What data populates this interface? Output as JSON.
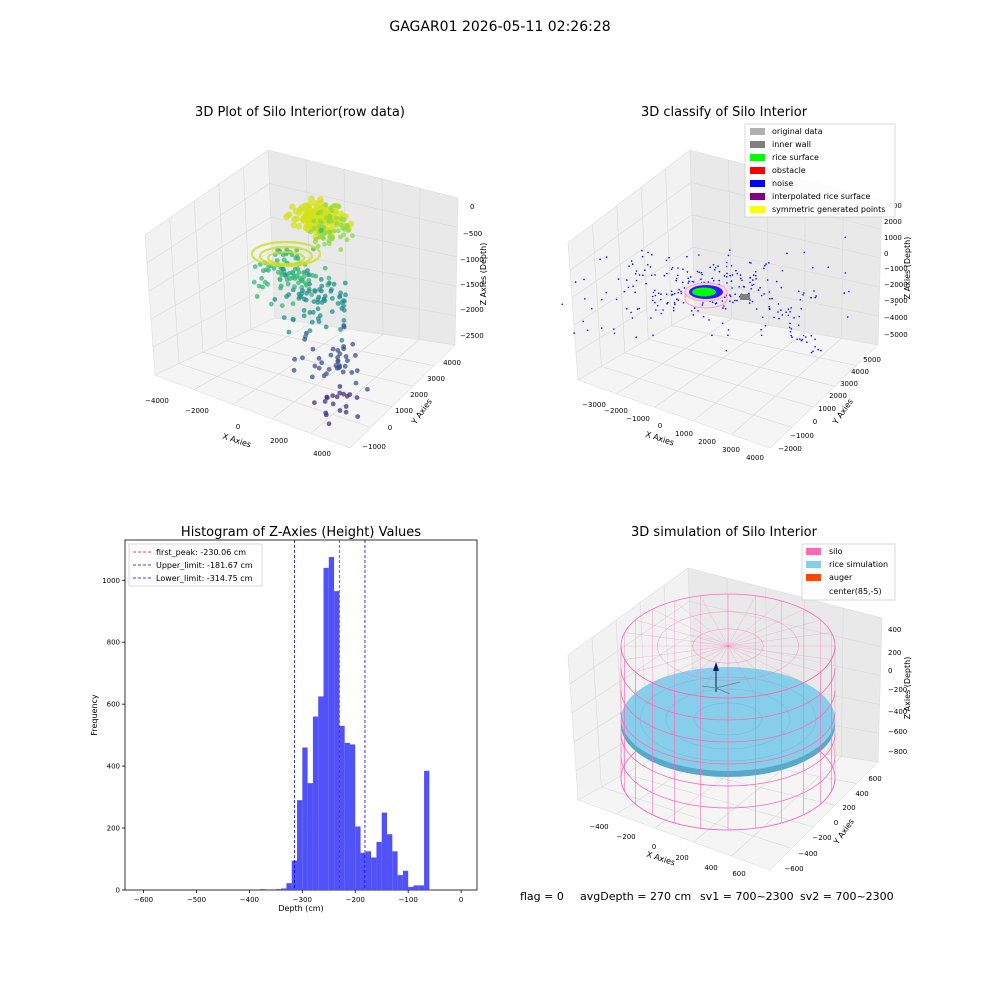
{
  "figure": {
    "suptitle": "GAGAR01 2026-05-11 02:26:28",
    "footer": {
      "flag": "flag = 0",
      "avg_depth": "avgDepth = 270 cm",
      "sv1": "sv1 = 700~2300",
      "sv2": "sv2 = 700~2300"
    }
  },
  "chart_data": [
    {
      "type": "scatter",
      "projection": "3d",
      "title": "3D Plot of Silo Interior(row data)",
      "xlabel": "X Axies",
      "ylabel": "Y Axies",
      "zlabel": "Z Axies (Depth)",
      "xticks": [
        "−4000",
        "−2000",
        "0",
        "2000",
        "4000"
      ],
      "yticks": [
        "−1000",
        "0",
        "1000",
        "2000",
        "3000",
        "4000"
      ],
      "zticks": [
        "0",
        "−500",
        "−1000",
        "−1500",
        "−2000",
        "−2500"
      ],
      "xlim": [
        -4500,
        4500
      ],
      "ylim": [
        -1200,
        4400
      ],
      "zlim": [
        -2700,
        0
      ],
      "colormap": "viridis",
      "clusters": [
        {
          "x": -300,
          "y": 2600,
          "z": -700,
          "spread": [
            900,
            500,
            150
          ],
          "count": 160,
          "color": "#d4e21a"
        },
        {
          "x": 200,
          "y": 2800,
          "z": -850,
          "spread": [
            800,
            500,
            200
          ],
          "count": 60,
          "color": "#8fd744"
        },
        {
          "x": -800,
          "y": 1800,
          "z": -1300,
          "spread": [
            1400,
            900,
            250
          ],
          "count": 90,
          "color": "#35b779"
        },
        {
          "x": 500,
          "y": 1500,
          "z": -1500,
          "spread": [
            1700,
            1000,
            300
          ],
          "count": 70,
          "color": "#21918c"
        },
        {
          "x": 2000,
          "y": 800,
          "z": -2000,
          "spread": [
            1400,
            900,
            300
          ],
          "count": 40,
          "color": "#3b528b"
        },
        {
          "x": 2600,
          "y": 300,
          "z": -2400,
          "spread": [
            900,
            700,
            200
          ],
          "count": 20,
          "color": "#46327e"
        }
      ]
    },
    {
      "type": "scatter",
      "projection": "3d",
      "title": "3D classify of Silo Interior",
      "xlabel": "X Axies",
      "ylabel": "Y Axies",
      "zlabel": "Z Axies (Depth)",
      "xticks": [
        "−3000",
        "−2000",
        "−1000",
        "0",
        "1000",
        "2000",
        "3000",
        "4000"
      ],
      "yticks": [
        "−2000",
        "−1000",
        "0",
        "1000",
        "2000",
        "3000",
        "4000",
        "5000"
      ],
      "zticks": [
        "3000",
        "2000",
        "1000",
        "0",
        "−1000",
        "−2000",
        "−3000",
        "−4000",
        "−5000"
      ],
      "xlim": [
        -3500,
        4500
      ],
      "ylim": [
        -2300,
        5300
      ],
      "zlim": [
        -5300,
        3300
      ],
      "legend": {
        "placement": "upper-right",
        "entries": [
          {
            "label": "original data",
            "color": "#b0b0b0"
          },
          {
            "label": "inner wall",
            "color": "#808080"
          },
          {
            "label": "rice surface",
            "color": "#00ff00"
          },
          {
            "label": "obstacle",
            "color": "#ff0000"
          },
          {
            "label": "noise",
            "color": "#0000ff"
          },
          {
            "label": "interpolated rice surface",
            "color": "#800080"
          },
          {
            "label": "symmetric generated points",
            "color": "#ffff00"
          }
        ]
      }
    },
    {
      "type": "bar",
      "subtype": "histogram",
      "title": "Histogram of Z-Axies (Height) Values",
      "xlabel": "Depth (cm)",
      "ylabel": "Frequency",
      "xlim": [
        -635,
        30
      ],
      "ylim": [
        0,
        1130
      ],
      "xticks": [
        -600,
        -500,
        -400,
        -300,
        -200,
        -100,
        0
      ],
      "yticks": [
        0,
        200,
        400,
        600,
        800,
        1000
      ],
      "bar_color": "#4848f8",
      "bins": [
        {
          "x0": -380,
          "x1": -370,
          "count": 3
        },
        {
          "x0": -360,
          "x1": -350,
          "count": 2
        },
        {
          "x0": -350,
          "x1": -340,
          "count": 3
        },
        {
          "x0": -340,
          "x1": -330,
          "count": 5
        },
        {
          "x0": -330,
          "x1": -320,
          "count": 22
        },
        {
          "x0": -320,
          "x1": -310,
          "count": 95
        },
        {
          "x0": -310,
          "x1": -300,
          "count": 290
        },
        {
          "x0": -300,
          "x1": -290,
          "count": 460
        },
        {
          "x0": -290,
          "x1": -280,
          "count": 345
        },
        {
          "x0": -280,
          "x1": -270,
          "count": 560
        },
        {
          "x0": -270,
          "x1": -260,
          "count": 625
        },
        {
          "x0": -260,
          "x1": -250,
          "count": 1040
        },
        {
          "x0": -250,
          "x1": -240,
          "count": 1075
        },
        {
          "x0": -240,
          "x1": -230,
          "count": 965
        },
        {
          "x0": -230,
          "x1": -220,
          "count": 530
        },
        {
          "x0": -220,
          "x1": -210,
          "count": 475
        },
        {
          "x0": -210,
          "x1": -200,
          "count": 470
        },
        {
          "x0": -200,
          "x1": -190,
          "count": 205
        },
        {
          "x0": -190,
          "x1": -180,
          "count": 120
        },
        {
          "x0": -180,
          "x1": -170,
          "count": 125
        },
        {
          "x0": -170,
          "x1": -160,
          "count": 105
        },
        {
          "x0": -160,
          "x1": -150,
          "count": 155
        },
        {
          "x0": -150,
          "x1": -140,
          "count": 250
        },
        {
          "x0": -140,
          "x1": -130,
          "count": 180
        },
        {
          "x0": -130,
          "x1": -120,
          "count": 125
        },
        {
          "x0": -120,
          "x1": -110,
          "count": 48
        },
        {
          "x0": -110,
          "x1": -100,
          "count": 62
        },
        {
          "x0": -100,
          "x1": -90,
          "count": 10
        },
        {
          "x0": -90,
          "x1": -80,
          "count": 15
        },
        {
          "x0": -80,
          "x1": -70,
          "count": 15
        },
        {
          "x0": -70,
          "x1": -60,
          "count": 385
        }
      ],
      "vlines": [
        {
          "label": "first_peak: -230.06 cm",
          "x": -230.06,
          "color": "#ff0000"
        },
        {
          "label": "Upper_limit: -181.67 cm",
          "x": -181.67,
          "color": "#0000cc"
        },
        {
          "label": "Lower_limit: -314.75 cm",
          "x": -314.75,
          "color": "#0000cc"
        }
      ],
      "legend": {
        "placement": "upper-left"
      }
    },
    {
      "type": "surface",
      "projection": "3d",
      "title": "3D simulation of Silo Interior",
      "xlabel": "X Axies",
      "ylabel": "Y Axies",
      "zlabel": "Z Axies (Depth)",
      "xticks": [
        "−400",
        "−200",
        "0",
        "200",
        "400",
        "600"
      ],
      "yticks": [
        "−600",
        "−400",
        "−200",
        "0",
        "200",
        "400",
        "600"
      ],
      "zticks": [
        "400",
        "200",
        "0",
        "−200",
        "−400",
        "−600",
        "−800"
      ],
      "legend": {
        "placement": "upper-right",
        "entries": [
          {
            "label": "silo",
            "color": "#ff69b4"
          },
          {
            "label": "rice simulation",
            "color": "#87ceeb"
          },
          {
            "label": "auger",
            "color": "#ff4500"
          },
          {
            "label": "center(85,-5)",
            "color": ""
          }
        ]
      }
    }
  ]
}
